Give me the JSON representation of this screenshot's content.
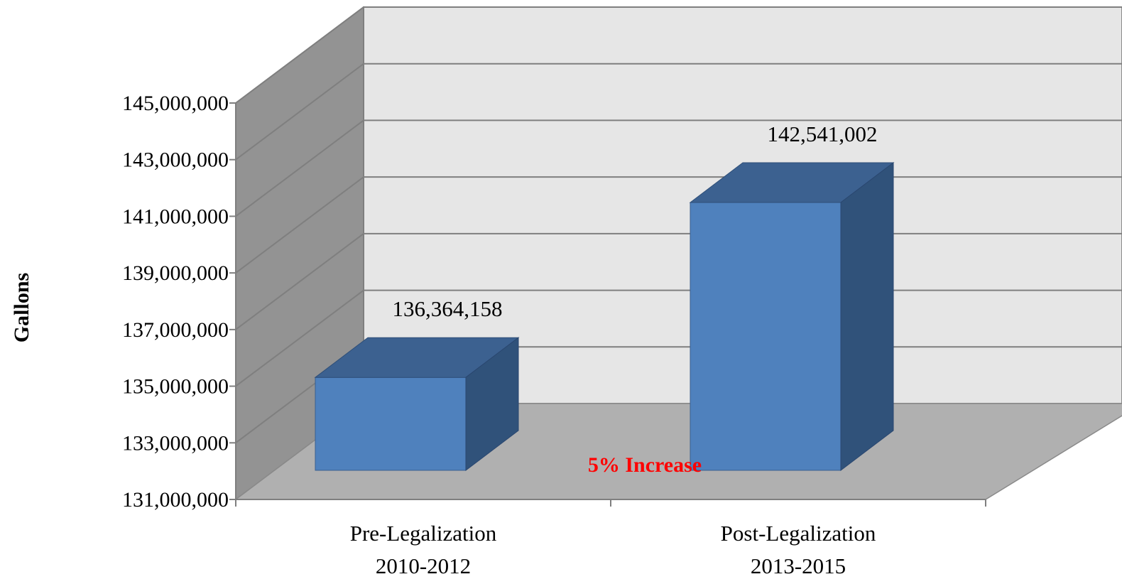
{
  "chart_data": {
    "type": "bar",
    "categories": [
      [
        "Pre-Legalization",
        "2010-2012"
      ],
      [
        "Post-Legalization",
        "2013-2015"
      ]
    ],
    "series": [
      {
        "values": [
          136364158,
          142541002
        ]
      }
    ],
    "data_labels": [
      "136,364,158",
      "142,541,002"
    ],
    "ylabel": "Gallons",
    "xlabel": "",
    "ylim": [
      131000000,
      145000000
    ],
    "yticks": [
      131000000,
      133000000,
      135000000,
      137000000,
      139000000,
      141000000,
      143000000,
      145000000
    ],
    "ytick_labels": [
      "131,000,000",
      "133,000,000",
      "135,000,000",
      "137,000,000",
      "139,000,000",
      "141,000,000",
      "143,000,000",
      "145,000,000"
    ],
    "grid": true,
    "style": "3d-column",
    "annotation": "5% Increase",
    "colors": {
      "bar_front": "#4f81bd",
      "bar_top": "#3c6190",
      "bar_side": "#30527a",
      "back_wall": "#e6e6e6",
      "side_wall": "#939393",
      "floor": "#b0b0b0",
      "gridline": "#7f7f7f",
      "annotation": "#ff0000"
    }
  }
}
